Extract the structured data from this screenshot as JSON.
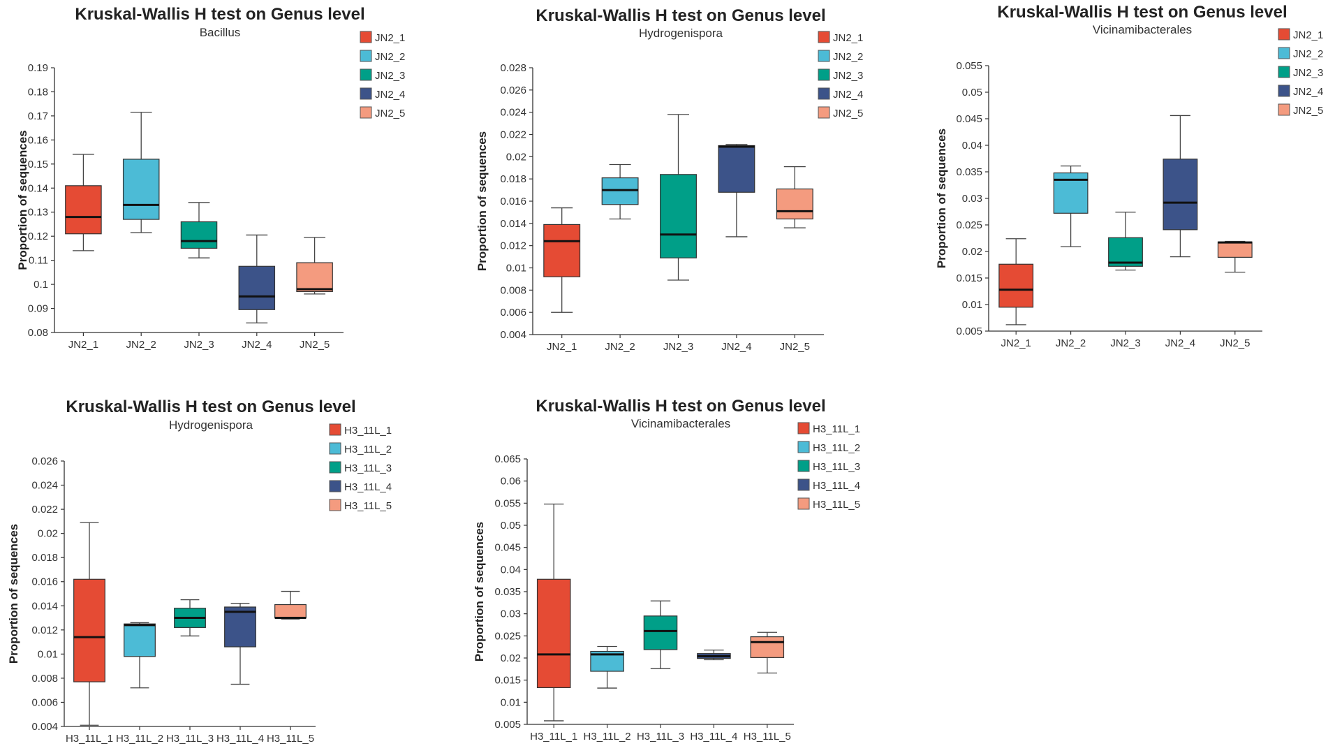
{
  "figure_title": "Kruskal-Wallis H test on Genus level panels",
  "chart_data": [
    {
      "type": "box",
      "title": "Kruskal-Wallis H test on Genus level",
      "subtitle": "Bacillus",
      "ylabel": "Proportion of sequences",
      "xlabel": "",
      "ylim": [
        0.08,
        0.19
      ],
      "yticks": [
        "0.08",
        "0.09",
        "0.1",
        "0.11",
        "0.12",
        "0.13",
        "0.14",
        "0.15",
        "0.16",
        "0.17",
        "0.18",
        "0.19"
      ],
      "categories": [
        "JN2_1",
        "JN2_2",
        "JN2_3",
        "JN2_4",
        "JN2_5"
      ],
      "legend": [
        "JN2_1",
        "JN2_2",
        "JN2_3",
        "JN2_4",
        "JN2_5"
      ],
      "colors": [
        "#e54b34",
        "#4cbbd6",
        "#009f88",
        "#3c5389",
        "#f49b7f"
      ],
      "boxes": [
        {
          "min": 0.114,
          "q1": 0.121,
          "median": 0.128,
          "q3": 0.141,
          "max": 0.154
        },
        {
          "min": 0.1215,
          "q1": 0.127,
          "median": 0.133,
          "q3": 0.152,
          "max": 0.1715
        },
        {
          "min": 0.111,
          "q1": 0.115,
          "median": 0.118,
          "q3": 0.126,
          "max": 0.134
        },
        {
          "min": 0.084,
          "q1": 0.0895,
          "median": 0.095,
          "q3": 0.1075,
          "max": 0.1205
        },
        {
          "min": 0.096,
          "q1": 0.097,
          "median": 0.098,
          "q3": 0.109,
          "max": 0.1195
        }
      ]
    },
    {
      "type": "box",
      "title": "Kruskal-Wallis H test on Genus level",
      "subtitle": "Hydrogenispora",
      "ylabel": "Proportion of sequences",
      "xlabel": "",
      "ylim": [
        0.004,
        0.028
      ],
      "yticks": [
        "0.004",
        "0.006",
        "0.008",
        "0.01",
        "0.012",
        "0.014",
        "0.016",
        "0.018",
        "0.02",
        "0.022",
        "0.024",
        "0.026",
        "0.028"
      ],
      "categories": [
        "JN2_1",
        "JN2_2",
        "JN2_3",
        "JN2_4",
        "JN2_5"
      ],
      "legend": [
        "JN2_1",
        "JN2_2",
        "JN2_3",
        "JN2_4",
        "JN2_5"
      ],
      "colors": [
        "#e54b34",
        "#4cbbd6",
        "#009f88",
        "#3c5389",
        "#f49b7f"
      ],
      "boxes": [
        {
          "min": 0.006,
          "q1": 0.0092,
          "median": 0.0124,
          "q3": 0.0139,
          "max": 0.0154
        },
        {
          "min": 0.0144,
          "q1": 0.0157,
          "median": 0.017,
          "q3": 0.0181,
          "max": 0.0193
        },
        {
          "min": 0.0089,
          "q1": 0.0109,
          "median": 0.013,
          "q3": 0.0184,
          "max": 0.0238
        },
        {
          "min": 0.0128,
          "q1": 0.0168,
          "median": 0.0209,
          "q3": 0.021,
          "max": 0.0211
        },
        {
          "min": 0.0136,
          "q1": 0.0144,
          "median": 0.0151,
          "q3": 0.0171,
          "max": 0.0191
        }
      ]
    },
    {
      "type": "box",
      "title": "Kruskal-Wallis H test on Genus level",
      "subtitle": "Vicinamibacterales",
      "ylabel": "Proportion of sequences",
      "xlabel": "",
      "ylim": [
        0.005,
        0.055
      ],
      "yticks": [
        "0.005",
        "0.01",
        "0.015",
        "0.02",
        "0.025",
        "0.03",
        "0.035",
        "0.04",
        "0.045",
        "0.05",
        "0.055"
      ],
      "categories": [
        "JN2_1",
        "JN2_2",
        "JN2_3",
        "JN2_4",
        "JN2_5"
      ],
      "legend": [
        "JN2_1",
        "JN2_2",
        "JN2_3",
        "JN2_4",
        "JN2_5"
      ],
      "colors": [
        "#e54b34",
        "#4cbbd6",
        "#009f88",
        "#3c5389",
        "#f49b7f"
      ],
      "boxes": [
        {
          "min": 0.0062,
          "q1": 0.0095,
          "median": 0.0128,
          "q3": 0.0176,
          "max": 0.0224
        },
        {
          "min": 0.0209,
          "q1": 0.0272,
          "median": 0.0335,
          "q3": 0.0348,
          "max": 0.0361
        },
        {
          "min": 0.0165,
          "q1": 0.0172,
          "median": 0.0179,
          "q3": 0.0226,
          "max": 0.0274
        },
        {
          "min": 0.019,
          "q1": 0.0241,
          "median": 0.0292,
          "q3": 0.0374,
          "max": 0.0456
        },
        {
          "min": 0.0161,
          "q1": 0.0189,
          "median": 0.0217,
          "q3": 0.0218,
          "max": 0.0219
        }
      ]
    },
    {
      "type": "box",
      "title": "Kruskal-Wallis H test on Genus level",
      "subtitle": "Hydrogenispora",
      "ylabel": "Proportion of sequences",
      "xlabel": "",
      "ylim": [
        0.004,
        0.026
      ],
      "yticks": [
        "0.004",
        "0.006",
        "0.008",
        "0.01",
        "0.012",
        "0.014",
        "0.016",
        "0.018",
        "0.02",
        "0.022",
        "0.024",
        "0.026"
      ],
      "categories": [
        "H3_11L_1",
        "H3_11L_2",
        "H3_11L_3",
        "H3_11L_4",
        "H3_11L_5"
      ],
      "legend": [
        "H3_11L_1",
        "H3_11L_2",
        "H3_11L_3",
        "H3_11L_4",
        "H3_11L_5"
      ],
      "colors": [
        "#e54b34",
        "#4cbbd6",
        "#009f88",
        "#3c5389",
        "#f49b7f"
      ],
      "boxes": [
        {
          "min": 0.0041,
          "q1": 0.0077,
          "median": 0.0114,
          "q3": 0.0162,
          "max": 0.0209
        },
        {
          "min": 0.0072,
          "q1": 0.0098,
          "median": 0.0124,
          "q3": 0.0125,
          "max": 0.0126
        },
        {
          "min": 0.0115,
          "q1": 0.0122,
          "median": 0.013,
          "q3": 0.0138,
          "max": 0.0145
        },
        {
          "min": 0.0075,
          "q1": 0.0106,
          "median": 0.0135,
          "q3": 0.0139,
          "max": 0.0142
        },
        {
          "min": 0.0129,
          "q1": 0.013,
          "median": 0.013,
          "q3": 0.0141,
          "max": 0.0152
        }
      ]
    },
    {
      "type": "box",
      "title": "Kruskal-Wallis H test on Genus level",
      "subtitle": "Vicinamibacterales",
      "ylabel": "Proportion of sequences",
      "xlabel": "",
      "ylim": [
        0.005,
        0.065
      ],
      "yticks": [
        "0.005",
        "0.01",
        "0.015",
        "0.02",
        "0.025",
        "0.03",
        "0.035",
        "0.04",
        "0.045",
        "0.05",
        "0.055",
        "0.06",
        "0.065"
      ],
      "categories": [
        "H3_11L_1",
        "H3_11L_2",
        "H3_11L_3",
        "H3_11L_4",
        "H3_11L_5"
      ],
      "legend": [
        "H3_11L_1",
        "H3_11L_2",
        "H3_11L_3",
        "H3_11L_4",
        "H3_11L_5"
      ],
      "colors": [
        "#e54b34",
        "#4cbbd6",
        "#009f88",
        "#3c5389",
        "#f49b7f"
      ],
      "boxes": [
        {
          "min": 0.0058,
          "q1": 0.0133,
          "median": 0.0208,
          "q3": 0.0378,
          "max": 0.0548
        },
        {
          "min": 0.0132,
          "q1": 0.017,
          "median": 0.0208,
          "q3": 0.0215,
          "max": 0.0226
        },
        {
          "min": 0.0176,
          "q1": 0.0219,
          "median": 0.0261,
          "q3": 0.0295,
          "max": 0.0329
        },
        {
          "min": 0.0196,
          "q1": 0.0199,
          "median": 0.0204,
          "q3": 0.021,
          "max": 0.0218
        },
        {
          "min": 0.0166,
          "q1": 0.0201,
          "median": 0.0236,
          "q3": 0.0248,
          "max": 0.0258
        }
      ]
    }
  ]
}
